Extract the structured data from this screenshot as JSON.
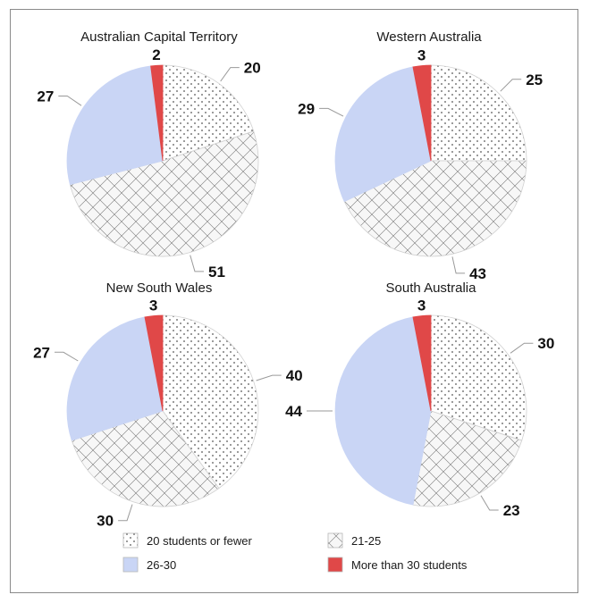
{
  "chart_data": [
    {
      "type": "pie",
      "title": "Australian Capital Territory",
      "categories": [
        "20 students or fewer",
        "21-25",
        "26-30",
        "More than 30 students"
      ],
      "values": [
        20,
        51,
        27,
        2
      ]
    },
    {
      "type": "pie",
      "title": "Western Australia",
      "categories": [
        "20 students or fewer",
        "21-25",
        "26-30",
        "More than 30 students"
      ],
      "values": [
        25,
        43,
        29,
        3
      ]
    },
    {
      "type": "pie",
      "title": "New South Wales",
      "categories": [
        "20 students or fewer",
        "21-25",
        "26-30",
        "More than 30 students"
      ],
      "values": [
        40,
        30,
        27,
        3
      ]
    },
    {
      "type": "pie",
      "title": "South Australia",
      "categories": [
        "20 students or fewer",
        "21-25",
        "26-30",
        "More than 30 students"
      ],
      "values": [
        30,
        23,
        44,
        3
      ]
    }
  ],
  "legend": {
    "placement": "bottom",
    "items": [
      {
        "label": "20 students or fewer",
        "pattern": "dots"
      },
      {
        "label": "21-25",
        "pattern": "crosshatch"
      },
      {
        "label": "26-30",
        "color": "#c9d5f5"
      },
      {
        "label": "More than 30 students",
        "color": "#e04848"
      }
    ]
  },
  "colors": {
    "dots_bg": "#ffffff",
    "crosshatch_bg": "#f7f7f7",
    "band_26_30": "#c9d5f5",
    "over_30": "#e04848",
    "pattern_ink": "#555555"
  }
}
